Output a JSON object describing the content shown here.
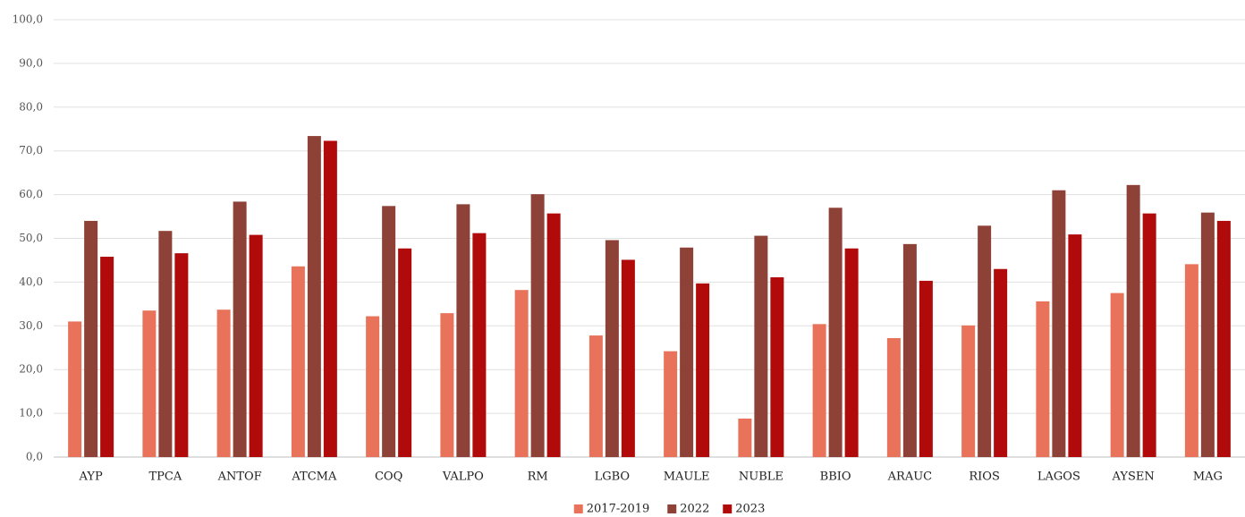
{
  "chart_data": {
    "type": "bar",
    "categories": [
      "AYP",
      "TPCA",
      "ANTOF",
      "ATCMA",
      "COQ",
      "VALPO",
      "RM",
      "LGBO",
      "MAULE",
      "NUBLE",
      "BBIO",
      "ARAUC",
      "RIOS",
      "LAGOS",
      "AYSEN",
      "MAG"
    ],
    "series": [
      {
        "name": "2017-2019",
        "color": "#e8735a",
        "values": [
          31.0,
          33.5,
          33.7,
          43.6,
          32.2,
          32.9,
          38.2,
          27.8,
          24.2,
          8.8,
          30.4,
          27.2,
          30.1,
          35.6,
          37.5,
          44.1
        ]
      },
      {
        "name": "2022",
        "color": "#8e4237",
        "values": [
          54.0,
          51.7,
          58.4,
          73.4,
          57.4,
          57.8,
          60.1,
          49.6,
          47.9,
          50.6,
          57.0,
          48.7,
          52.9,
          61.0,
          62.2,
          55.9
        ]
      },
      {
        "name": "2023",
        "color": "#b00a0a",
        "values": [
          45.8,
          46.6,
          50.8,
          72.3,
          47.7,
          51.2,
          55.7,
          45.1,
          39.7,
          41.1,
          47.7,
          40.3,
          43.0,
          50.9,
          55.7,
          54.0
        ]
      }
    ],
    "ylim": [
      0,
      100
    ],
    "yticks": [
      {
        "value": 0,
        "label": "0,0"
      },
      {
        "value": 10,
        "label": "10,0"
      },
      {
        "value": 20,
        "label": "20,0"
      },
      {
        "value": 30,
        "label": "30,0"
      },
      {
        "value": 40,
        "label": "40,0"
      },
      {
        "value": 50,
        "label": "50,0"
      },
      {
        "value": 60,
        "label": "60,0"
      },
      {
        "value": 70,
        "label": "70,0"
      },
      {
        "value": 80,
        "label": "80,0"
      },
      {
        "value": 90,
        "label": "90,0"
      },
      {
        "value": 100,
        "label": "100,0"
      }
    ],
    "grid": true,
    "legend": "bottom"
  }
}
